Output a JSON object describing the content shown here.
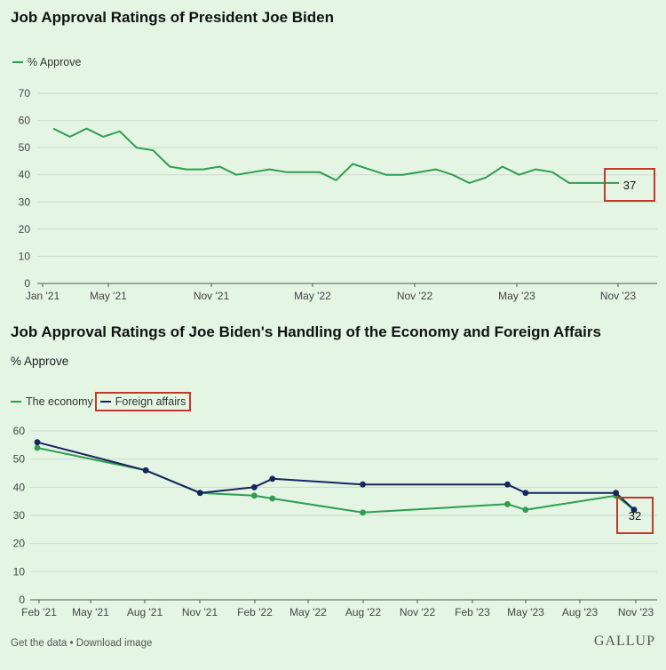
{
  "chart_data": [
    {
      "type": "line",
      "title": "Job Approval Ratings of President Joe Biden",
      "legend": "% Approve",
      "xlabel": "",
      "ylabel": "",
      "ylim": [
        0,
        70
      ],
      "yticks": [
        0,
        10,
        20,
        30,
        40,
        50,
        60,
        70
      ],
      "xticks": [
        "Jan '21",
        "May '21",
        "Nov '21",
        "May '22",
        "Nov '22",
        "May '23",
        "Nov '23"
      ],
      "series": [
        {
          "name": "% Approve",
          "color": "#2e9e4f",
          "x": [
            0,
            1,
            2,
            3,
            4,
            5,
            6,
            7,
            8,
            9,
            10,
            11,
            12,
            13,
            14,
            15,
            16,
            17,
            18,
            19,
            20,
            21,
            22,
            23,
            24,
            25,
            26,
            27,
            28,
            29,
            30,
            31,
            32,
            33,
            34
          ],
          "values": [
            57,
            54,
            57,
            54,
            56,
            50,
            49,
            43,
            42,
            42,
            43,
            40,
            41,
            42,
            41,
            41,
            41,
            38,
            44,
            42,
            40,
            40,
            41,
            42,
            40,
            37,
            39,
            43,
            40,
            42,
            41,
            37,
            37,
            37,
            37
          ]
        }
      ],
      "annotation": {
        "label": "37"
      }
    },
    {
      "type": "line",
      "title": "Job Approval Ratings of Joe Biden's Handling of the Economy and Foreign Affairs",
      "subtitle": "% Approve",
      "xlabel": "",
      "ylabel": "",
      "ylim": [
        0,
        60
      ],
      "yticks": [
        0,
        10,
        20,
        30,
        40,
        50,
        60
      ],
      "xticks": [
        "Feb '21",
        "May '21",
        "Aug '21",
        "Nov '21",
        "Feb '22",
        "May '22",
        "Aug '22",
        "Nov '22",
        "Feb '23",
        "May '23",
        "Aug '23",
        "Nov '23"
      ],
      "series": [
        {
          "name": "The economy",
          "color": "#2e9e4f",
          "x": [
            0,
            6,
            9,
            12,
            13,
            18,
            26,
            27,
            32,
            33
          ],
          "values": [
            54,
            46,
            38,
            37,
            36,
            31,
            34,
            32,
            37,
            32
          ]
        },
        {
          "name": "Foreign affairs",
          "color": "#17255e",
          "x": [
            0,
            6,
            9,
            12,
            13,
            18,
            26,
            27,
            32,
            33
          ],
          "values": [
            56,
            46,
            38,
            40,
            43,
            41,
            41,
            38,
            38,
            32
          ]
        }
      ],
      "annotation": {
        "label": "32"
      }
    }
  ],
  "footer": {
    "links": "Get the data • Download image",
    "brand": "GALLUP"
  }
}
